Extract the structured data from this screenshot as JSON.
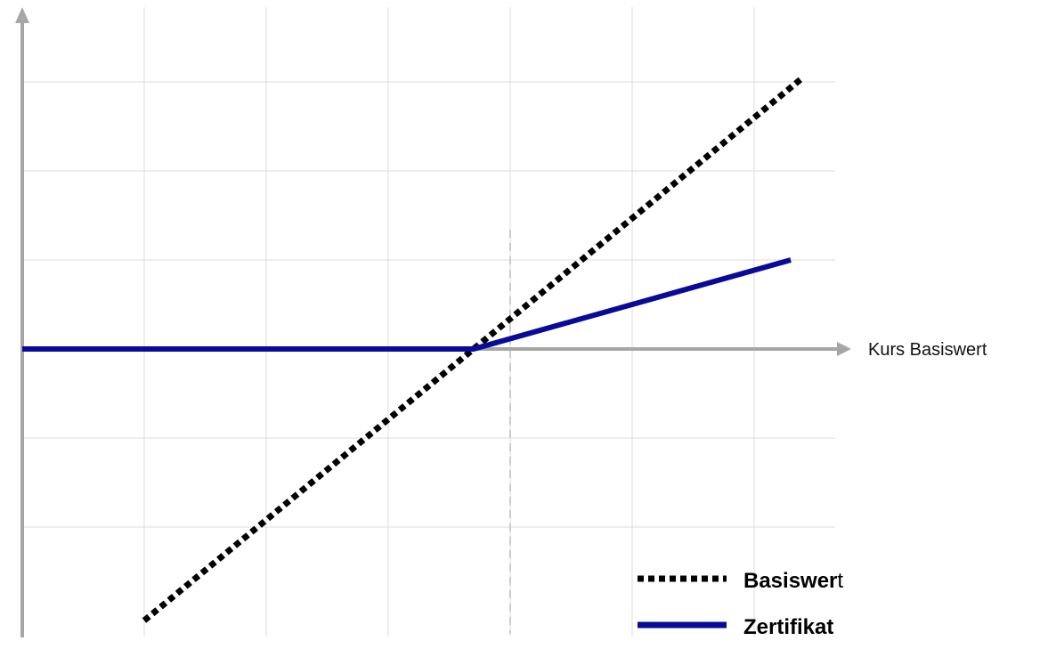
{
  "chart_data": {
    "type": "line",
    "xlabel": "Kurs Basiswert",
    "ylabel": "",
    "grid": true,
    "legend_position": "bottom-right",
    "x_gridlines": [
      1,
      2,
      3,
      4,
      5,
      6
    ],
    "y_gridlines": [
      3,
      2,
      1,
      -1,
      -2
    ],
    "reference_x": 4,
    "xlim": [
      0,
      7
    ],
    "ylim": [
      -3,
      4
    ],
    "series": [
      {
        "name": "Basiswert",
        "name_bold_part": "Basiswer",
        "name_regular_part": "t",
        "style": "dotted",
        "color": "#000000",
        "x": [
          1,
          6.4
        ],
        "y": [
          -3.05,
          3.05
        ]
      },
      {
        "name": "Zertifikat",
        "style": "solid",
        "color": "#0a0a99",
        "x": [
          0,
          3.7,
          6.3
        ],
        "y": [
          0,
          0,
          1.0
        ]
      }
    ]
  },
  "colors": {
    "axis": "#a6a6a6",
    "grid": "#dcdcdc",
    "reference_line": "#cccccc"
  }
}
